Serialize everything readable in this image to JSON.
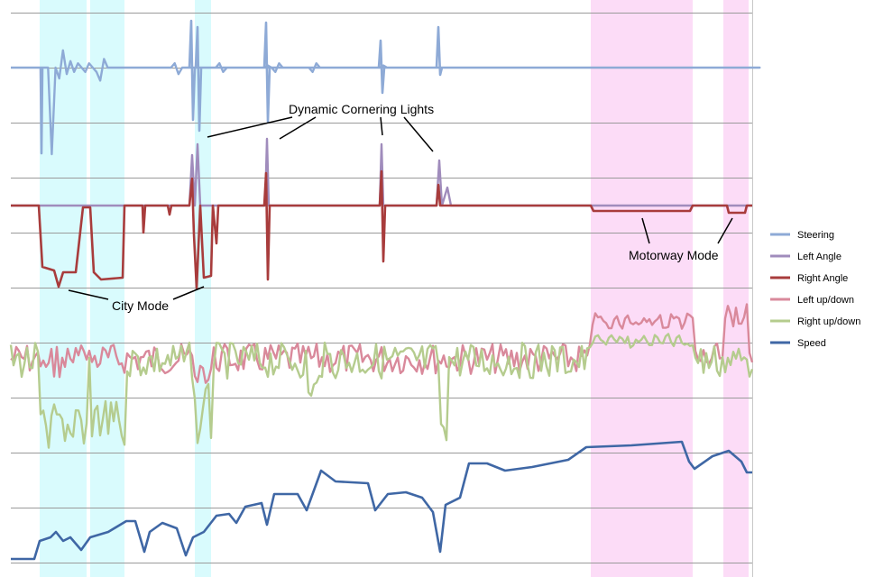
{
  "chart_data": {
    "type": "line",
    "grid": true,
    "legend_position": "right",
    "series": [
      {
        "name": "Steering",
        "color": "#8eaad6",
        "values": [
          0,
          0,
          0,
          0,
          0,
          0,
          0,
          0,
          0,
          0,
          0,
          -40,
          0,
          -5,
          8,
          -3,
          3,
          -2,
          2,
          0,
          -2,
          2,
          0,
          -2,
          -6,
          4,
          0,
          0,
          0,
          0,
          0,
          0,
          0,
          0,
          0,
          0,
          0,
          0,
          0,
          0,
          0,
          0,
          0,
          0,
          2,
          -3,
          0,
          0,
          0,
          0,
          0,
          0,
          0,
          0,
          0,
          0,
          2,
          -2,
          0,
          0,
          0,
          0,
          0,
          0,
          0,
          0,
          0,
          0,
          0,
          1,
          0,
          -2,
          2,
          0,
          0,
          0,
          0,
          0,
          0,
          0,
          0,
          -2,
          2,
          0,
          0,
          0,
          0,
          0,
          0,
          0,
          0,
          0,
          0,
          0,
          0,
          0,
          0,
          0,
          0,
          0,
          1,
          0,
          0,
          0,
          0,
          0,
          0,
          0,
          0,
          0,
          0,
          0,
          0,
          0,
          0,
          0,
          0,
          0,
          0,
          0,
          0,
          0,
          0,
          0,
          0,
          0,
          0,
          0,
          0,
          0,
          0,
          0,
          0,
          0,
          0,
          0,
          0,
          0,
          0,
          0,
          0,
          0,
          0,
          0,
          0,
          0,
          0,
          0,
          0,
          0,
          0,
          0,
          0,
          0,
          0,
          0,
          0,
          0,
          0,
          0,
          0,
          0,
          0,
          0,
          0,
          0,
          0,
          0,
          0,
          0,
          0,
          0,
          0,
          0,
          0,
          0,
          0,
          0,
          0,
          0,
          0,
          0,
          0,
          0,
          0,
          0,
          0,
          0,
          0,
          0,
          0,
          0,
          0,
          0,
          0,
          0,
          0,
          0,
          0,
          0,
          0,
          0
        ]
      }
    ],
    "annotations": [
      {
        "text": "Dynamic Cornering Lights"
      },
      {
        "text": "City Mode"
      },
      {
        "text": "Motorway Mode"
      }
    ]
  },
  "legend": [
    {
      "name": "Steering",
      "color": "#8eaad6"
    },
    {
      "name": "Left Angle",
      "color": "#a08cbc"
    },
    {
      "name": "Right Angle",
      "color": "#a83c3c"
    },
    {
      "name": "Left up/down",
      "color": "#d9899b"
    },
    {
      "name": "Right up/down",
      "color": "#b5cc8e"
    },
    {
      "name": "Speed",
      "color": "#3f67a5"
    }
  ],
  "highlights": {
    "city_color": "#d9fbfd",
    "motorway_color": "#fcdcf7"
  }
}
